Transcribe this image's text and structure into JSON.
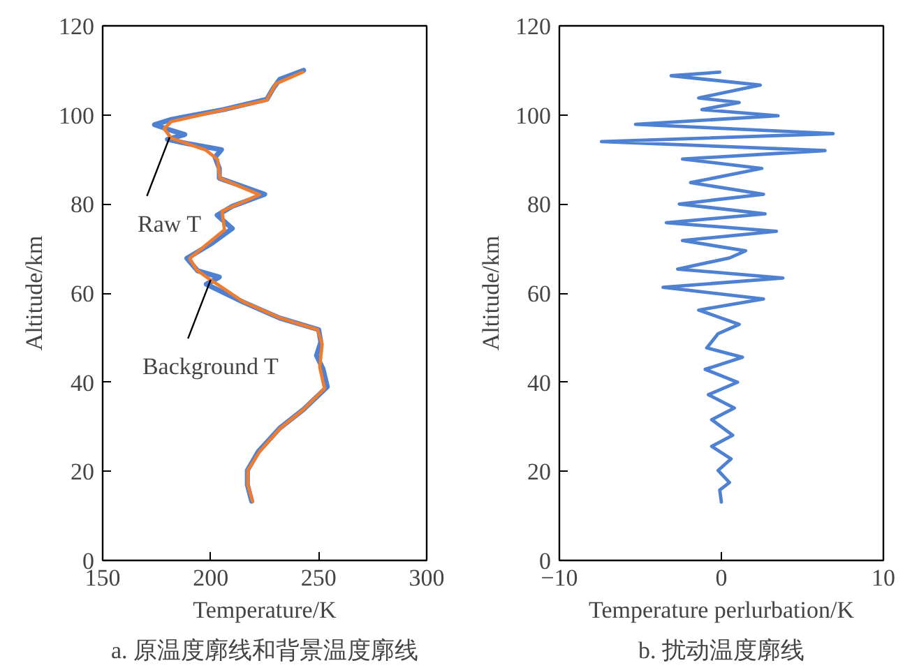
{
  "chart_data": [
    {
      "type": "line",
      "title": "a. 原温度廓线和背景温度廓线",
      "xlabel": "Temperature/K",
      "ylabel": "Altitude/km",
      "xlim": [
        150,
        300
      ],
      "xticks": [
        150,
        200,
        250,
        300
      ],
      "ylim": [
        0,
        120
      ],
      "yticks": [
        0,
        20,
        40,
        60,
        80,
        100,
        120
      ],
      "grid": false,
      "series": [
        {
          "color": "#4f81d3",
          "x": [
            243,
            232,
            229,
            226,
            206,
            182,
            174,
            180,
            188,
            180,
            190,
            205,
            202,
            204,
            204,
            225,
            210,
            203,
            210,
            200,
            189,
            194,
            204,
            198,
            215,
            232,
            250,
            251,
            249,
            252,
            254,
            243,
            232,
            222,
            217,
            217,
            219
          ],
          "values": [
            110,
            108,
            106,
            103.5,
            101.2,
            99,
            97.8,
            96.8,
            95.6,
            94.5,
            93.5,
            92.2,
            90.5,
            88,
            85.8,
            82.2,
            79.5,
            77.5,
            74.5,
            71,
            67.8,
            65,
            63.6,
            62,
            58,
            54.4,
            51.8,
            49,
            46,
            43,
            39,
            33.9,
            29.7,
            24.4,
            20.2,
            17,
            13.3
          ]
        },
        {
          "color": "#ed7d31",
          "x": [
            242.6,
            230.2,
            225.9,
            206.4,
            181.7,
            178.5,
            181.7,
            197.8,
            203.2,
            204.3,
            222.6,
            205.3,
            206.4,
            190.3,
            193.5,
            201,
            202.1,
            215,
            232.3,
            249.5,
            251.6,
            250.5,
            252.7,
            243,
            232.3,
            222.6,
            217.2,
            217.2,
            219.4
          ],
          "values": [
            109.6,
            107,
            103.3,
            101.2,
            98.5,
            96.9,
            94.8,
            92.1,
            90,
            85.8,
            82.1,
            78.4,
            74.2,
            67.8,
            65.2,
            62.6,
            62.3,
            58.1,
            54.4,
            51.8,
            48.6,
            43.4,
            38.6,
            33.9,
            29.7,
            24.4,
            20.2,
            17,
            13.3
          ]
        }
      ],
      "annotations": [
        {
          "text": "Raw T",
          "x": 181,
          "y": 95
        },
        {
          "text": "Background T",
          "x": 200,
          "y": 63
        }
      ]
    },
    {
      "type": "line",
      "title": "b. 扰动温度廓线",
      "xlabel": "Temperature perlurbation/K",
      "ylabel": "Altitude/km",
      "xlim": [
        -10,
        10
      ],
      "xticks": [
        -10,
        0,
        10
      ],
      "ylim": [
        0,
        120
      ],
      "yticks": [
        0,
        20,
        40,
        60,
        80,
        100,
        120
      ],
      "grid": false,
      "series": [
        {
          "color": "#4f81d3",
          "x": [
            -0.1,
            -3.1,
            2.4,
            -1.4,
            1.1,
            -1.2,
            3.5,
            -5.3,
            6.9,
            -7.4,
            6.4,
            -2.4,
            2.5,
            -1.9,
            2.6,
            -2.6,
            2.7,
            -3.4,
            3.4,
            -2.4,
            1.5,
            0.5,
            -2.7,
            3.8,
            -3.6,
            2.6,
            -1.4,
            1.1,
            -0.2,
            -0.9,
            1.3,
            -1.0,
            1.0,
            -0.8,
            0.8,
            -0.6,
            0.7,
            -0.6,
            0.6,
            -0.2,
            0.5,
            -0.1,
            0
          ],
          "values": [
            109.6,
            108.8,
            106.7,
            103.8,
            102.8,
            101.2,
            99.8,
            97.9,
            95.8,
            94,
            92,
            90.1,
            88,
            84.8,
            82.2,
            80,
            77.8,
            75.8,
            73.9,
            71.8,
            69.5,
            67.9,
            65.4,
            63.4,
            61.3,
            58.7,
            56.2,
            53,
            50.9,
            47.7,
            45.6,
            42.9,
            40,
            37.2,
            34.2,
            31.6,
            28.1,
            25.6,
            22.8,
            20.2,
            17.5,
            15.8,
            13.1
          ]
        }
      ]
    }
  ]
}
